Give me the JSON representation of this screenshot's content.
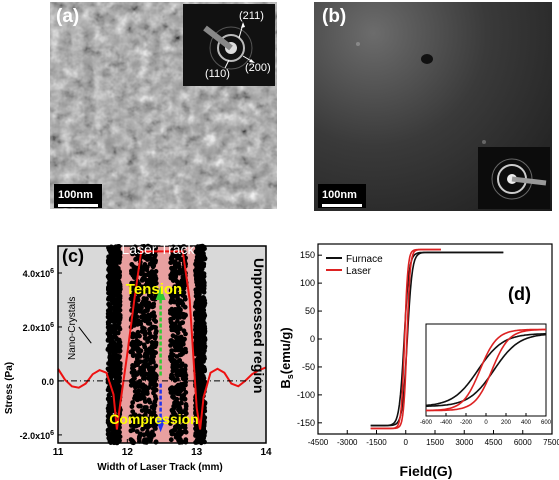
{
  "figure": {
    "panel_a": {
      "label": "(a)",
      "scale_bar": "100nm",
      "saed_indices": [
        "(211)",
        "(110)",
        "(200)"
      ]
    },
    "panel_b": {
      "label": "(b)",
      "scale_bar": "100nm"
    }
  },
  "chart_data": [
    {
      "type": "scatter",
      "panel_label": "(c)",
      "xlabel": "Width of Laser Track (mm)",
      "ylabel": "Stress (Pa)",
      "xlim": [
        11,
        14
      ],
      "ylim": [
        -2300000.0,
        5000000.0
      ],
      "x_ticks": [
        "11",
        "12",
        "13",
        "14"
      ],
      "y_ticks": [
        {
          "value": 4000000.0,
          "label": "4.0x10",
          "exp": "6"
        },
        {
          "value": 2000000.0,
          "label": "2.0x10",
          "exp": "6"
        },
        {
          "value": 0.0,
          "label": "0.0",
          "exp": ""
        },
        {
          "value": -2000000.0,
          "label": "-2.0x10",
          "exp": "6"
        }
      ],
      "annotations": {
        "laser_track": "Laser Track",
        "tension": "Tension",
        "compression": "Compression",
        "nano_crystals": "Nano-Crystals",
        "unprocessed_region": "Unprocessed region"
      },
      "regions": {
        "laser_track_x": [
          11.85,
          13.0
        ],
        "unprocessed_left_x": [
          11,
          11.85
        ],
        "unprocessed_right_x": [
          13.0,
          14
        ]
      },
      "colors": {
        "laser_track_fill": "#e8a0a0",
        "unprocessed_fill": "#d9d9d9",
        "curve": "#ee1111",
        "points": "#000000",
        "tension": "#ffff00",
        "compression": "#ffff00",
        "arrow_up": "#33cc33",
        "arrow_down": "#2233ee"
      },
      "series": [
        {
          "name": "curve",
          "x": [
            11.0,
            11.1,
            11.2,
            11.3,
            11.4,
            11.5,
            11.6,
            11.7,
            11.8,
            11.85,
            11.9,
            12.0,
            12.1,
            12.2,
            12.3,
            12.4,
            12.5,
            12.6,
            12.7,
            12.8,
            12.9,
            12.95,
            13.0,
            13.05,
            13.1,
            13.2,
            13.3,
            13.4,
            13.5,
            13.6,
            13.7,
            13.8,
            13.9,
            14.0
          ],
          "y": [
            450000.0,
            50000.0,
            -200000.0,
            -250000.0,
            -100000.0,
            250000.0,
            400000.0,
            300000.0,
            -500000.0,
            -1800000.0,
            -800000.0,
            1000000.0,
            3000000.0,
            4800000.0,
            4800000.0,
            4800000.0,
            4800000.0,
            4800000.0,
            4800000.0,
            4800000.0,
            3000000.0,
            1000000.0,
            -1000000.0,
            -1800000.0,
            -600000.0,
            300000.0,
            450000.0,
            300000.0,
            -100000.0,
            -200000.0,
            0.0,
            250000.0,
            400000.0,
            500000.0
          ]
        }
      ]
    },
    {
      "type": "line",
      "panel_label": "(d)",
      "xlabel": "Field(G)",
      "ylabel": "B",
      "ylabel_sub": "s",
      "ylabel_units": "(emu/g)",
      "xlim": [
        -4500,
        7500
      ],
      "ylim": [
        -170,
        170
      ],
      "x_ticks": [
        -4500,
        -3000,
        -1500,
        0,
        1500,
        3000,
        4500,
        6000,
        7500
      ],
      "y_ticks": [
        -150,
        -100,
        -50,
        0,
        50,
        100,
        150
      ],
      "legend": [
        "Furnace",
        "Laser"
      ],
      "legend_position": "top-left",
      "series": [
        {
          "name": "Furnace",
          "color": "#111111",
          "coercivity": 80,
          "saturation": 155,
          "steepness": 250,
          "x_range": [
            -1800,
            5000
          ]
        },
        {
          "name": "Laser",
          "color": "#dd2222",
          "coercivity": 60,
          "saturation": 160,
          "steepness": 170,
          "x_range": [
            -1800,
            1800
          ]
        }
      ],
      "inset": {
        "xlim": [
          -600,
          600
        ],
        "ylim": [
          -170,
          170
        ],
        "x_ticks": [
          -600,
          -400,
          -200,
          0,
          200,
          400,
          600
        ],
        "series": [
          {
            "name": "Furnace",
            "color": "#111111",
            "coercivity": 80,
            "saturation": 135,
            "steepness": 250
          },
          {
            "name": "Laser",
            "color": "#dd2222",
            "coercivity": 60,
            "saturation": 150,
            "steepness": 170
          }
        ]
      }
    }
  ]
}
